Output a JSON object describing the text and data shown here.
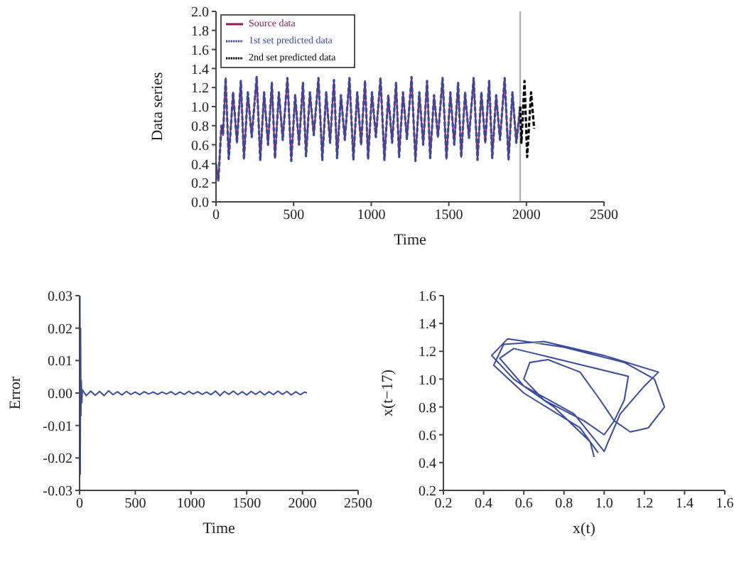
{
  "chart_data": [
    {
      "type": "line",
      "xlabel": "Time",
      "ylabel": "Data series",
      "xlim": [
        0,
        2500
      ],
      "xticks": [
        0,
        500,
        1000,
        1500,
        2000,
        2500
      ],
      "ylim": [
        0,
        2
      ],
      "yticks": [
        {
          "value": 0,
          "label": "0.0"
        },
        {
          "value": 0.2,
          "label": "0.2"
        },
        {
          "value": 0.4,
          "label": "0.4"
        },
        {
          "value": 0.6,
          "label": "0.6"
        },
        {
          "value": 0.8,
          "label": "0.8"
        },
        {
          "value": 1,
          "label": "1.0"
        },
        {
          "value": 1.2,
          "label": "1.2"
        },
        {
          "value": 1.4,
          "label": "1.4"
        },
        {
          "value": 1.6,
          "label": "1.6"
        },
        {
          "value": 1.8,
          "label": "1.8"
        },
        {
          "value": 2,
          "label": "2.0"
        }
      ],
      "legend": "top left",
      "marker": "none",
      "grid": false,
      "ref_lines": [
        {
          "axis": "x",
          "value": 1960,
          "color": "#b0b0b0"
        }
      ],
      "x": [
        0,
        15,
        35,
        45,
        62,
        82,
        110,
        135,
        160,
        180,
        205,
        230,
        262,
        285,
        310,
        335,
        360,
        380,
        405,
        430,
        460,
        485,
        510,
        535,
        560,
        580,
        605,
        630,
        660,
        685,
        710,
        735,
        760,
        780,
        805,
        830,
        860,
        885,
        910,
        935,
        960,
        980,
        1005,
        1030,
        1060,
        1085,
        1110,
        1135,
        1160,
        1180,
        1205,
        1230,
        1260,
        1285,
        1310,
        1335,
        1360,
        1380,
        1405,
        1430,
        1460,
        1485,
        1510,
        1535,
        1560,
        1580,
        1605,
        1630,
        1660,
        1685,
        1710,
        1735,
        1760,
        1780,
        1805,
        1830,
        1860,
        1885,
        1910,
        1935,
        1960
      ],
      "series": [
        {
          "name": "Source data",
          "color": "#8b1a5a",
          "line_style": "solid",
          "values": [
            0.4,
            0.22,
            0.8,
            0.7,
            1.3,
            0.45,
            1.15,
            0.62,
            1.27,
            0.45,
            1.15,
            0.68,
            1.31,
            0.44,
            1.15,
            0.6,
            1.25,
            0.46,
            1.15,
            0.65,
            1.3,
            0.43,
            1.12,
            0.6,
            1.25,
            0.48,
            1.15,
            0.7,
            1.3,
            0.44,
            1.15,
            0.62,
            1.28,
            0.46,
            1.12,
            0.65,
            1.3,
            0.44,
            1.15,
            0.6,
            1.27,
            0.45,
            1.15,
            0.68,
            1.3,
            0.44,
            1.12,
            0.62,
            1.25,
            0.47,
            1.15,
            0.66,
            1.31,
            0.43,
            1.15,
            0.6,
            1.27,
            0.46,
            1.12,
            0.68,
            1.3,
            0.45,
            1.15,
            0.6,
            1.25,
            0.47,
            1.15,
            0.67,
            1.3,
            0.44,
            1.15,
            0.62,
            1.27,
            0.46,
            1.12,
            0.65,
            1.3,
            0.44,
            1.15,
            0.62,
            1.0
          ]
        },
        {
          "name": "1st set predicted data",
          "color": "#3a4a9e",
          "line_style": "dashed",
          "values": [
            0.4,
            0.22,
            0.8,
            0.7,
            1.3,
            0.45,
            1.15,
            0.62,
            1.27,
            0.45,
            1.15,
            0.68,
            1.31,
            0.44,
            1.15,
            0.6,
            1.25,
            0.46,
            1.15,
            0.65,
            1.3,
            0.43,
            1.12,
            0.6,
            1.25,
            0.48,
            1.15,
            0.7,
            1.3,
            0.44,
            1.15,
            0.62,
            1.28,
            0.46,
            1.12,
            0.65,
            1.3,
            0.44,
            1.15,
            0.6,
            1.27,
            0.45,
            1.15,
            0.68,
            1.3,
            0.44,
            1.12,
            0.62,
            1.25,
            0.47,
            1.15,
            0.66,
            1.31,
            0.43,
            1.15,
            0.6,
            1.27,
            0.46,
            1.12,
            0.68,
            1.3,
            0.45,
            1.15,
            0.6,
            1.25,
            0.47,
            1.15,
            0.67,
            1.3,
            0.44,
            1.15,
            0.62,
            1.27,
            0.46,
            1.12,
            0.65,
            1.3,
            0.44,
            1.15,
            0.62,
            1.0
          ]
        },
        {
          "name": "2nd set predicted data",
          "color": "#000000",
          "line_style": "dashed",
          "x": [
            1960,
            1968,
            1988,
            2005,
            2030,
            2050
          ],
          "values": [
            1.0,
            0.62,
            1.27,
            0.47,
            1.15,
            0.77
          ]
        }
      ]
    },
    {
      "type": "line",
      "xlabel": "Time",
      "ylabel": "Error",
      "xlim": [
        0,
        2500
      ],
      "xticks": [
        0,
        500,
        1000,
        1500,
        2000,
        2500
      ],
      "ylim": [
        -0.03,
        0.03
      ],
      "yticks": [
        {
          "value": -0.03,
          "label": "-0.03"
        },
        {
          "value": -0.02,
          "label": "-0.02"
        },
        {
          "value": -0.01,
          "label": "-0.01"
        },
        {
          "value": 0,
          "label": "0.00"
        },
        {
          "value": 0.01,
          "label": "0.01"
        },
        {
          "value": 0.02,
          "label": "0.02"
        },
        {
          "value": 0.03,
          "label": "0.03"
        }
      ],
      "legend": false,
      "marker": "none",
      "grid": false,
      "x": [
        0,
        3,
        6,
        9,
        12,
        15,
        20,
        25,
        60,
        100,
        140,
        180,
        220,
        260,
        300,
        340,
        380,
        420,
        460,
        500,
        540,
        580,
        620,
        660,
        700,
        740,
        780,
        820,
        860,
        900,
        940,
        980,
        1020,
        1060,
        1100,
        1140,
        1180,
        1220,
        1260,
        1300,
        1340,
        1380,
        1420,
        1460,
        1500,
        1540,
        1580,
        1620,
        1660,
        1700,
        1740,
        1780,
        1820,
        1860,
        1900,
        1940,
        1980,
        2020,
        2040
      ],
      "series": [
        {
          "color": "#3a4a9e",
          "values": [
            0,
            0.03,
            -0.025,
            0.02,
            -0.007,
            0.004,
            -0.003,
            0.001,
            -0.0008,
            0.0006,
            -0.0007,
            0.0005,
            -0.0008,
            0.0007,
            -0.0005,
            0.0004,
            -0.0006,
            0.0005,
            -0.0004,
            0.0003,
            -0.0005,
            0.0004,
            -0.0003,
            0.0003,
            -0.0004,
            0.0003,
            -0.0003,
            0.0004,
            -0.0005,
            0.0003,
            -0.0004,
            0.0005,
            -0.0003,
            0.0004,
            -0.0004,
            0.0003,
            -0.0005,
            0.0006,
            -0.0008,
            0.0005,
            -0.0004,
            0.0006,
            -0.0005,
            0.0004,
            -0.0006,
            0.0005,
            -0.0004,
            0.0005,
            -0.0006,
            0.0004,
            -0.0005,
            0.0006,
            -0.0004,
            0.0005,
            -0.0006,
            0.0004,
            -0.0005,
            0.0003,
            0
          ]
        }
      ]
    },
    {
      "type": "line",
      "xlabel": "x(t)",
      "ylabel": "x(t−17)",
      "xlim": [
        0.2,
        1.6
      ],
      "xticks": [
        {
          "value": 0.2,
          "label": "0.2"
        },
        {
          "value": 0.4,
          "label": "0.4"
        },
        {
          "value": 0.6,
          "label": "0.6"
        },
        {
          "value": 0.8,
          "label": "0.8"
        },
        {
          "value": 1,
          "label": "1.0"
        },
        {
          "value": 1.2,
          "label": "1.2"
        },
        {
          "value": 1.4,
          "label": "1.4"
        },
        {
          "value": 1.6,
          "label": "1.6"
        }
      ],
      "ylim": [
        0.2,
        1.6
      ],
      "yticks": [
        {
          "value": 0.2,
          "label": "0.2"
        },
        {
          "value": 0.4,
          "label": "0.4"
        },
        {
          "value": 0.6,
          "label": "0.6"
        },
        {
          "value": 0.8,
          "label": "0.8"
        },
        {
          "value": 1,
          "label": "1.0"
        },
        {
          "value": 1.2,
          "label": "1.2"
        },
        {
          "value": 1.4,
          "label": "1.4"
        },
        {
          "value": 1.6,
          "label": "1.6"
        }
      ],
      "legend": false,
      "marker": "none",
      "grid": false,
      "series": [
        {
          "color": "#3a4a9e",
          "x": [
            0.95,
            0.93,
            0.75,
            0.55,
            0.44,
            0.52,
            0.8,
            1.1,
            1.25,
            1.3,
            1.22,
            1.13,
            1.05,
            0.98,
            0.88,
            0.72,
            0.63,
            0.6,
            0.7,
            0.9,
            1.0,
            1.05,
            1.1,
            1.12,
            0.95,
            0.75,
            0.55,
            0.48,
            0.6,
            0.85,
            1.0,
            1.02,
            1.08,
            1.2,
            1.27,
            1.0,
            0.7,
            0.5,
            0.45,
            0.6,
            0.88,
            0.97
          ],
          "values": [
            0.44,
            0.55,
            0.8,
            1.0,
            1.17,
            1.29,
            1.23,
            1.12,
            1.0,
            0.8,
            0.65,
            0.62,
            0.7,
            0.85,
            1.05,
            1.14,
            1.12,
            1.0,
            0.85,
            0.7,
            0.6,
            0.7,
            0.85,
            1.02,
            1.08,
            1.15,
            1.22,
            1.15,
            0.95,
            0.75,
            0.48,
            0.55,
            0.75,
            0.95,
            1.05,
            1.17,
            1.27,
            1.25,
            1.1,
            0.9,
            0.65,
            0.47
          ]
        }
      ]
    }
  ]
}
